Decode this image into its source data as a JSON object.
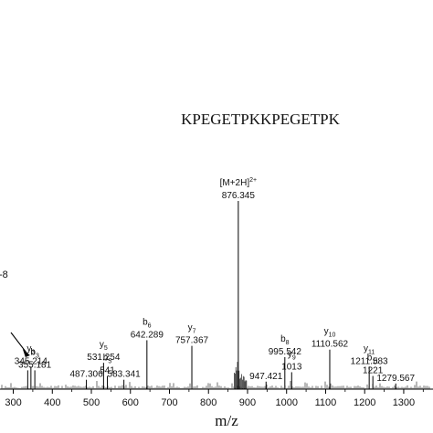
{
  "chart_data": {
    "type": "bar",
    "title": "KPEGETPKKPEGETPK",
    "xlabel": "m/z",
    "ylabel": "",
    "xlim": [
      266,
      1375
    ],
    "ylim": [
      0,
      1
    ],
    "xticks": [
      300,
      400,
      500,
      600,
      700,
      800,
      900,
      1000,
      1100,
      1200,
      1300
    ],
    "xtick_labels": [
      "300",
      "400",
      "500",
      "600",
      "700",
      "800",
      "900",
      "1000",
      "1100",
      "1200",
      "1300"
    ],
    "partial_label": "-8",
    "peaks": [
      {
        "mz": 337,
        "intensity": 0.1,
        "ion": "",
        "ion_sub": "",
        "ion_sup": "",
        "mz_label": ""
      },
      {
        "mz": 345.214,
        "intensity": 0.12,
        "ion": "y",
        "ion_sub": "3",
        "ion_sup": "",
        "mz_label": "345.214"
      },
      {
        "mz": 355.181,
        "intensity": 0.1,
        "ion": "b",
        "ion_sub": "3",
        "ion_sup": "",
        "mz_label": "355.181"
      },
      {
        "mz": 487.306,
        "intensity": 0.05,
        "ion": "",
        "ion_sub": "",
        "ion_sup": "",
        "mz_label": "487.306"
      },
      {
        "mz": 531.254,
        "intensity": 0.14,
        "ion": "y",
        "ion_sub": "5",
        "ion_sup": "",
        "mz_label": "531.254"
      },
      {
        "mz": 541,
        "intensity": 0.07,
        "ion": "b",
        "ion_sub": "5",
        "ion_sup": "",
        "mz_label": "541"
      },
      {
        "mz": 583.341,
        "intensity": 0.05,
        "ion": "",
        "ion_sub": "",
        "ion_sup": "",
        "mz_label": "583.341"
      },
      {
        "mz": 642.289,
        "intensity": 0.26,
        "ion": "b",
        "ion_sub": "6",
        "ion_sup": "",
        "mz_label": "642.289"
      },
      {
        "mz": 757.367,
        "intensity": 0.23,
        "ion": "y",
        "ion_sub": "7",
        "ion_sup": "",
        "mz_label": "757.367"
      },
      {
        "mz": 876.345,
        "intensity": 1.0,
        "ion": "[M+2H]",
        "ion_sub": "",
        "ion_sup": "2+",
        "mz_label": "876.345"
      },
      {
        "mz": 947.421,
        "intensity": 0.04,
        "ion": "",
        "ion_sub": "",
        "ion_sup": "",
        "mz_label": "947.421"
      },
      {
        "mz": 995.542,
        "intensity": 0.17,
        "ion": "b",
        "ion_sub": "8",
        "ion_sup": "",
        "mz_label": "995.542"
      },
      {
        "mz": 1013,
        "intensity": 0.09,
        "ion": "y",
        "ion_sub": "9",
        "ion_sup": "",
        "mz_label": "1013"
      },
      {
        "mz": 1110.562,
        "intensity": 0.21,
        "ion": "y",
        "ion_sub": "10",
        "ion_sup": "",
        "mz_label": "1110.562"
      },
      {
        "mz": 1211.583,
        "intensity": 0.12,
        "ion": "y",
        "ion_sub": "11",
        "ion_sup": "",
        "mz_label": "1211.583"
      },
      {
        "mz": 1221,
        "intensity": 0.07,
        "ion": "b",
        "ion_sub": "11",
        "ion_sup": "",
        "mz_label": "1221"
      },
      {
        "mz": 1279.567,
        "intensity": 0.03,
        "ion": "",
        "ion_sub": "",
        "ion_sup": "",
        "mz_label": "1279.567"
      }
    ]
  }
}
